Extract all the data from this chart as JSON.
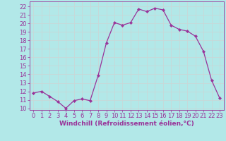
{
  "x": [
    0,
    1,
    2,
    3,
    4,
    5,
    6,
    7,
    8,
    9,
    10,
    11,
    12,
    13,
    14,
    15,
    16,
    17,
    18,
    19,
    20,
    21,
    22,
    23
  ],
  "y": [
    11.8,
    12.0,
    11.4,
    10.8,
    10.0,
    10.9,
    11.1,
    10.9,
    13.9,
    17.7,
    20.1,
    19.8,
    20.1,
    21.7,
    21.4,
    21.8,
    21.6,
    19.8,
    19.3,
    19.1,
    18.5,
    16.7,
    13.3,
    11.2
  ],
  "line_color": "#993399",
  "marker": "D",
  "marker_size": 2.2,
  "bg_color": "#b2e8e8",
  "grid_color": "#c8d8d8",
  "xlabel": "Windchill (Refroidissement éolien,°C)",
  "ylim": [
    9.8,
    22.6
  ],
  "xlim": [
    -0.5,
    23.5
  ],
  "yticks": [
    10,
    11,
    12,
    13,
    14,
    15,
    16,
    17,
    18,
    19,
    20,
    21,
    22
  ],
  "xticks": [
    0,
    1,
    2,
    3,
    4,
    5,
    6,
    7,
    8,
    9,
    10,
    11,
    12,
    13,
    14,
    15,
    16,
    17,
    18,
    19,
    20,
    21,
    22,
    23
  ],
  "tick_color": "#993399",
  "label_color": "#993399",
  "label_fontsize": 6.5,
  "tick_fontsize": 6.0
}
